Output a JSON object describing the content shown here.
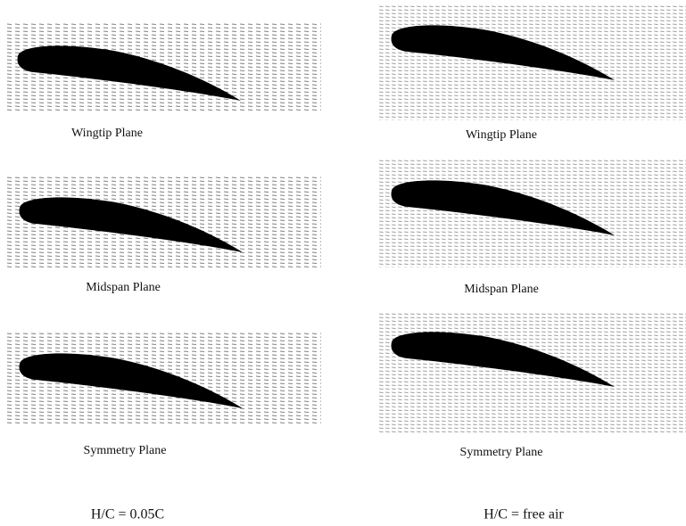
{
  "columns": [
    {
      "label": "H/C = 0.05C",
      "panels": [
        "Wingtip Plane",
        "Midspan Plane",
        "Symmetry Plane"
      ]
    },
    {
      "label": "H/C = free air",
      "panels": [
        "Wingtip Plane",
        "Midspan Plane",
        "Symmetry Plane"
      ]
    }
  ]
}
